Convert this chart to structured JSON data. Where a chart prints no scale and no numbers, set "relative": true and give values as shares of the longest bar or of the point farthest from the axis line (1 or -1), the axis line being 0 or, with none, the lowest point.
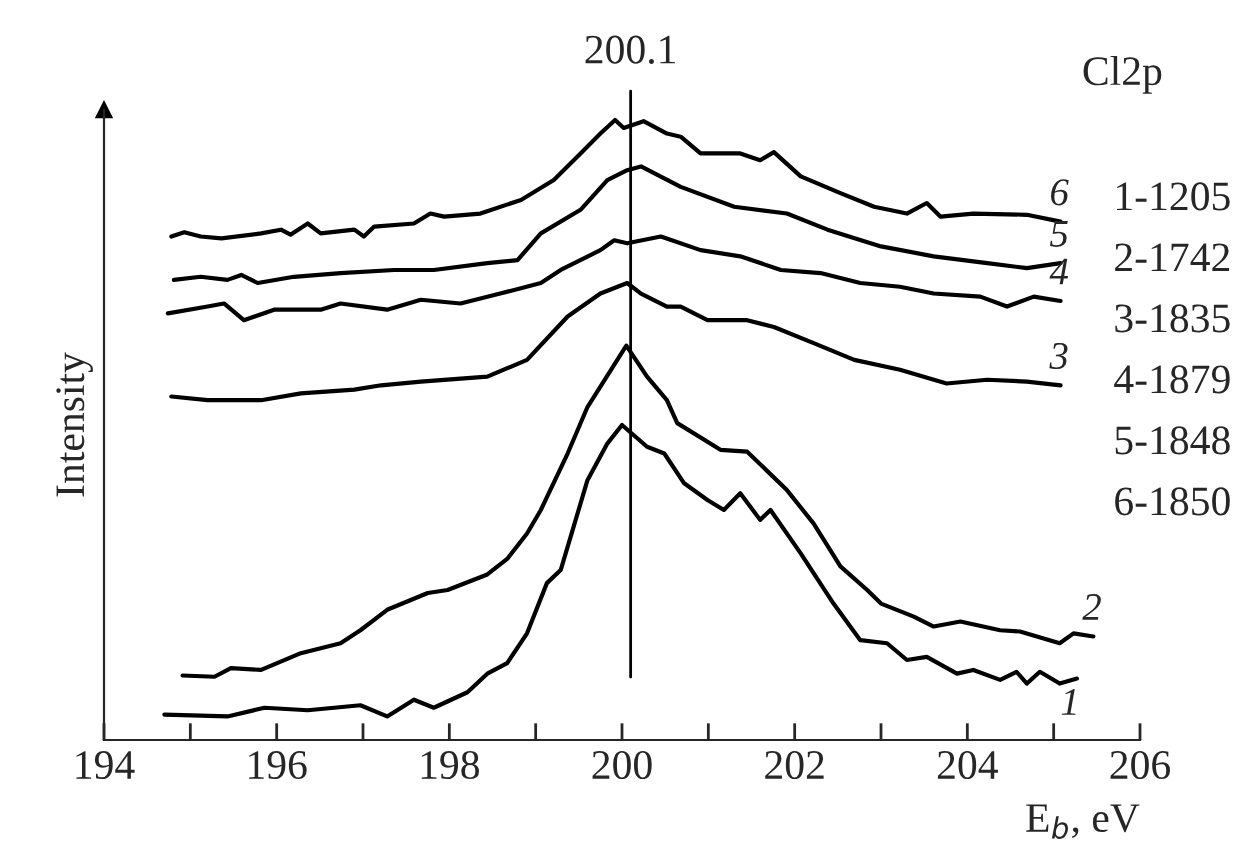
{
  "chart_data": {
    "type": "line",
    "relative": true,
    "xlabel": "E$_{b}$, eV",
    "ylabel": "Intensity",
    "xlim": [
      194,
      206
    ],
    "xticks": [
      194,
      {
        "value": 195,
        "label": null
      },
      196,
      {
        "value": 197,
        "label": null
      },
      198,
      {
        "value": 199,
        "label": null
      },
      200,
      {
        "value": 201,
        "label": null
      },
      202,
      {
        "value": 203,
        "label": null
      },
      204,
      {
        "value": 205,
        "label": null
      },
      206
    ],
    "grid": false,
    "legend": false,
    "marker": "none",
    "line_style": "solid",
    "ref_lines": [
      {
        "axis": "x",
        "value": 200.1,
        "label": "200.1",
        "color": "#000000"
      }
    ],
    "annotations": [
      "Cl2p",
      "1-1205",
      "2-1742",
      "3-1835",
      "4-1879",
      "5-1848",
      "6-1850"
    ],
    "series": [
      {
        "name": "1",
        "color": "#000000",
        "x": [
          194.7,
          195.43,
          195.86,
          196.36,
          196.97,
          197.28,
          197.59,
          197.82,
          198.21,
          198.44,
          198.67,
          198.9,
          199.13,
          199.29,
          199.6,
          199.83,
          200.0,
          200.29,
          200.49,
          200.72,
          200.99,
          201.18,
          201.37,
          201.6,
          201.72,
          202.07,
          202.45,
          202.76,
          203.07,
          203.3,
          203.53,
          203.88,
          204.07,
          204.38,
          204.57,
          204.69,
          204.84,
          205.07,
          205.27
        ],
        "values": [
          0.041,
          0.038,
          0.052,
          0.048,
          0.056,
          0.038,
          0.065,
          0.052,
          0.077,
          0.107,
          0.124,
          0.172,
          0.253,
          0.274,
          0.419,
          0.478,
          0.508,
          0.473,
          0.462,
          0.414,
          0.387,
          0.371,
          0.398,
          0.355,
          0.371,
          0.301,
          0.22,
          0.161,
          0.156,
          0.129,
          0.134,
          0.107,
          0.113,
          0.097,
          0.11,
          0.091,
          0.11,
          0.091,
          0.099
        ]
      },
      {
        "name": "2",
        "color": "#000000",
        "x": [
          194.91,
          195.28,
          195.47,
          195.82,
          196.28,
          196.74,
          196.97,
          197.28,
          197.75,
          197.98,
          198.44,
          198.67,
          198.9,
          199.06,
          199.37,
          199.6,
          200.05,
          200.29,
          200.52,
          200.64,
          201.14,
          201.45,
          201.91,
          202.22,
          202.53,
          202.84,
          203.0,
          203.38,
          203.61,
          203.92,
          204.38,
          204.61,
          205.07,
          205.23,
          205.46
        ],
        "values": [
          0.104,
          0.102,
          0.116,
          0.113,
          0.14,
          0.156,
          0.177,
          0.21,
          0.237,
          0.242,
          0.267,
          0.292,
          0.333,
          0.371,
          0.462,
          0.537,
          0.636,
          0.586,
          0.548,
          0.511,
          0.468,
          0.465,
          0.403,
          0.349,
          0.28,
          0.242,
          0.22,
          0.199,
          0.183,
          0.191,
          0.177,
          0.175,
          0.156,
          0.172,
          0.167
        ]
      },
      {
        "name": "3",
        "color": "#000000",
        "x": [
          194.78,
          195.2,
          195.82,
          196.28,
          196.9,
          197.21,
          197.67,
          198.44,
          198.9,
          199.37,
          199.75,
          200.06,
          200.22,
          200.52,
          200.68,
          200.99,
          201.45,
          201.76,
          202.22,
          202.69,
          203.22,
          203.76,
          204.23,
          204.69,
          205.08
        ],
        "values": [
          0.554,
          0.548,
          0.548,
          0.559,
          0.565,
          0.572,
          0.578,
          0.586,
          0.613,
          0.683,
          0.72,
          0.737,
          0.72,
          0.699,
          0.699,
          0.677,
          0.677,
          0.666,
          0.64,
          0.613,
          0.597,
          0.575,
          0.581,
          0.578,
          0.572
        ]
      },
      {
        "name": "4",
        "color": "#000000",
        "x": [
          194.74,
          195.2,
          195.39,
          195.62,
          195.97,
          196.51,
          196.74,
          197.28,
          197.67,
          198.13,
          198.59,
          199.06,
          199.29,
          199.75,
          199.91,
          200.06,
          200.45,
          200.91,
          201.37,
          201.84,
          202.3,
          202.76,
          203.22,
          203.61,
          204.15,
          204.46,
          204.77,
          205.08
        ],
        "values": [
          0.688,
          0.699,
          0.704,
          0.677,
          0.694,
          0.694,
          0.704,
          0.694,
          0.71,
          0.704,
          0.72,
          0.737,
          0.758,
          0.79,
          0.806,
          0.801,
          0.812,
          0.79,
          0.78,
          0.758,
          0.753,
          0.737,
          0.731,
          0.72,
          0.715,
          0.699,
          0.715,
          0.708
        ]
      },
      {
        "name": "5",
        "color": "#000000",
        "x": [
          194.81,
          195.12,
          195.43,
          195.59,
          195.78,
          196.2,
          196.74,
          197.36,
          197.82,
          198.44,
          198.79,
          199.06,
          199.52,
          199.83,
          200.06,
          200.22,
          200.68,
          201.3,
          201.91,
          202.38,
          203.0,
          203.61,
          204.23,
          204.69,
          205.08
        ],
        "values": [
          0.742,
          0.747,
          0.742,
          0.75,
          0.737,
          0.747,
          0.753,
          0.758,
          0.758,
          0.769,
          0.774,
          0.817,
          0.855,
          0.903,
          0.919,
          0.925,
          0.892,
          0.86,
          0.849,
          0.823,
          0.796,
          0.78,
          0.769,
          0.761,
          0.769
        ]
      },
      {
        "name": "6",
        "color": "#000000",
        "x": [
          194.78,
          194.93,
          195.12,
          195.36,
          195.82,
          196.05,
          196.16,
          196.36,
          196.51,
          196.9,
          197.01,
          197.13,
          197.59,
          197.78,
          197.94,
          198.36,
          198.83,
          199.21,
          199.52,
          199.75,
          199.92,
          200.02,
          200.25,
          200.52,
          200.68,
          200.91,
          201.37,
          201.6,
          201.76,
          202.07,
          202.53,
          202.92,
          203.3,
          203.53,
          203.69,
          204.07,
          204.69,
          205.08
        ],
        "values": [
          0.812,
          0.819,
          0.812,
          0.809,
          0.817,
          0.823,
          0.815,
          0.833,
          0.817,
          0.823,
          0.812,
          0.828,
          0.833,
          0.849,
          0.844,
          0.849,
          0.871,
          0.903,
          0.946,
          0.978,
          1.0,
          0.987,
          0.998,
          0.978,
          0.973,
          0.946,
          0.946,
          0.935,
          0.948,
          0.909,
          0.882,
          0.86,
          0.849,
          0.866,
          0.844,
          0.849,
          0.847,
          0.836
        ]
      }
    ]
  }
}
